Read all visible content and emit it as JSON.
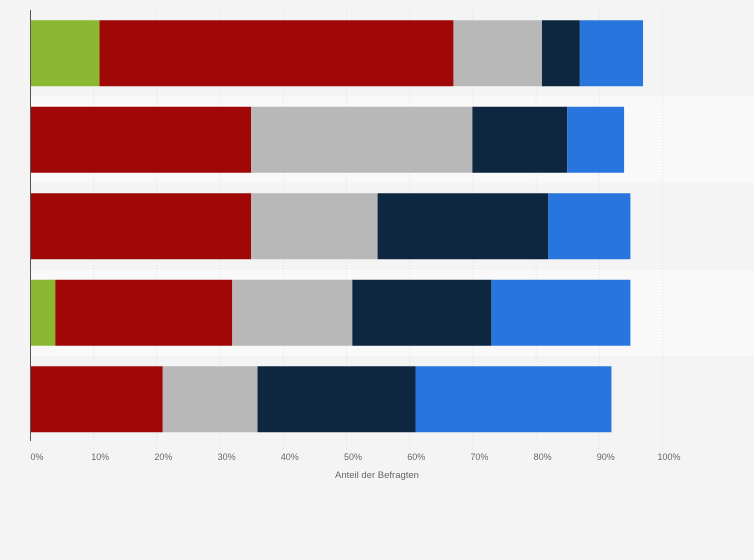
{
  "chart_data": {
    "type": "bar",
    "orientation": "horizontal",
    "stacked": true,
    "xlabel": "Anteil der Befragten",
    "ylabel": "",
    "xlim": [
      0,
      1
    ],
    "x_ticks": [
      "0%",
      "10%",
      "20%",
      "30%",
      "40%",
      "50%",
      "60%",
      "70%",
      "80%",
      "90%",
      "100%"
    ],
    "grid": true,
    "legend": "none",
    "rows": 5,
    "series": [
      {
        "color": "#8ab833",
        "values": [
          0.11,
          0.0,
          0.0,
          0.04,
          0.0
        ]
      },
      {
        "color": "#a00808",
        "values": [
          0.56,
          0.35,
          0.35,
          0.28,
          0.21
        ]
      },
      {
        "color": "#b8b8b8",
        "values": [
          0.14,
          0.35,
          0.2,
          0.19,
          0.15
        ]
      },
      {
        "color": "#0e2740",
        "values": [
          0.06,
          0.15,
          0.27,
          0.22,
          0.25
        ]
      },
      {
        "color": "#2876dd",
        "values": [
          0.1,
          0.09,
          0.13,
          0.22,
          0.31
        ]
      }
    ]
  }
}
